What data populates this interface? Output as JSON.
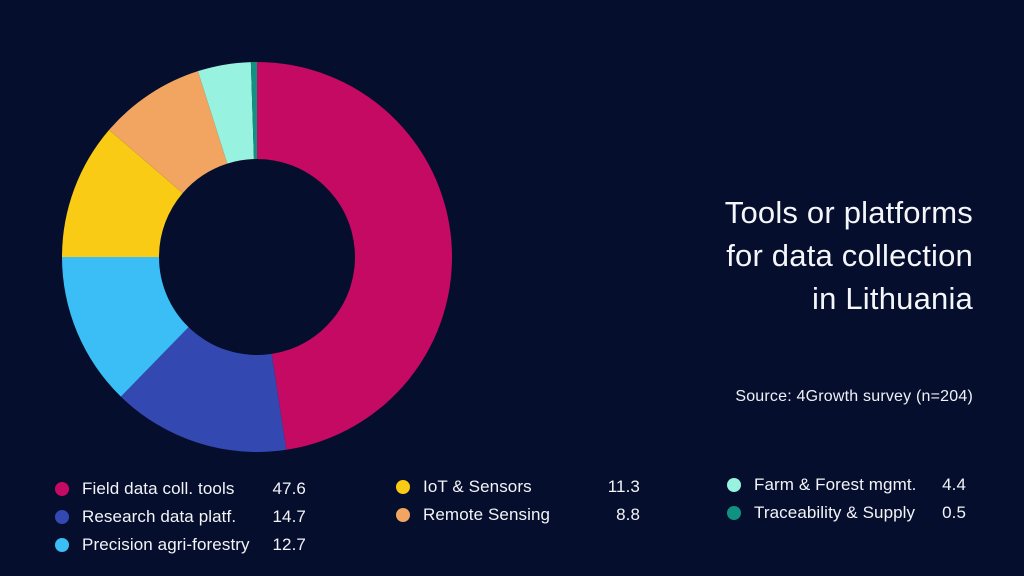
{
  "page": {
    "background_color": "#060e2d",
    "text_color": "#f2f4f8"
  },
  "header": {
    "title": "Tools or platforms for data collection in Lithuania",
    "title_lines": [
      "Tools or platforms",
      "for data collection",
      "in Lithuania"
    ],
    "source": "Source: 4Growth survey (n=204)"
  },
  "chart_data": {
    "type": "pie",
    "subtype": "donut",
    "title": "Tools or platforms for data collection in Lithuania",
    "source": "Source: 4Growth survey (n=204)",
    "unit": "percent",
    "categories": [
      "Field data coll. tools",
      "Research data platf.",
      "Precision agri-forestry",
      "IoT & Sensors",
      "Remote Sensing",
      "Farm & Forest mgmt.",
      "Traceability & Supply"
    ],
    "values": [
      47.6,
      14.7,
      12.7,
      11.3,
      8.8,
      4.4,
      0.5
    ],
    "colors": [
      "#c40a63",
      "#3448b2",
      "#3bbef5",
      "#f9cb15",
      "#f2a461",
      "#97f2df",
      "#119181"
    ],
    "start_angle_deg": 0,
    "direction": "clockwise",
    "inner_radius_ratio": 0.5,
    "legend_position": "bottom",
    "grid": false
  },
  "legend": {
    "columns": [
      [
        0,
        1,
        2
      ],
      [
        3,
        4
      ],
      [
        5,
        6
      ]
    ]
  }
}
